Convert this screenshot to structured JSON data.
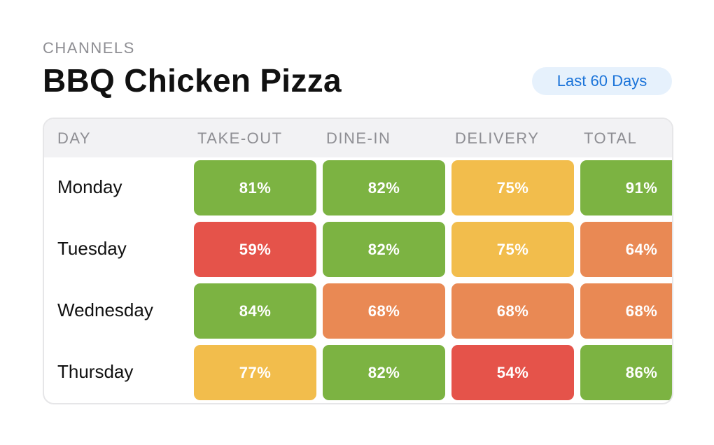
{
  "overline": "CHANNELS",
  "title": "BBQ Chicken Pizza",
  "period_label": "Last 60 Days",
  "columns": [
    "DAY",
    "TAKE-OUT",
    "DINE-IN",
    "DELIVERY",
    "TOTAL"
  ],
  "colors": {
    "green": "#7cb342",
    "yellow": "#f2bd4c",
    "orange": "#e98954",
    "red": "#e5534a"
  },
  "rows": [
    {
      "day": "Monday",
      "cells": [
        {
          "value": "81%",
          "level": "green"
        },
        {
          "value": "82%",
          "level": "green"
        },
        {
          "value": "75%",
          "level": "yellow"
        },
        {
          "value": "91%",
          "level": "green"
        }
      ]
    },
    {
      "day": "Tuesday",
      "cells": [
        {
          "value": "59%",
          "level": "red"
        },
        {
          "value": "82%",
          "level": "green"
        },
        {
          "value": "75%",
          "level": "yellow"
        },
        {
          "value": "64%",
          "level": "orange"
        }
      ]
    },
    {
      "day": "Wednesday",
      "cells": [
        {
          "value": "84%",
          "level": "green"
        },
        {
          "value": "68%",
          "level": "orange"
        },
        {
          "value": "68%",
          "level": "orange"
        },
        {
          "value": "68%",
          "level": "orange"
        }
      ]
    },
    {
      "day": "Thursday",
      "cells": [
        {
          "value": "77%",
          "level": "yellow"
        },
        {
          "value": "82%",
          "level": "green"
        },
        {
          "value": "54%",
          "level": "red"
        },
        {
          "value": "86%",
          "level": "green"
        }
      ]
    }
  ]
}
